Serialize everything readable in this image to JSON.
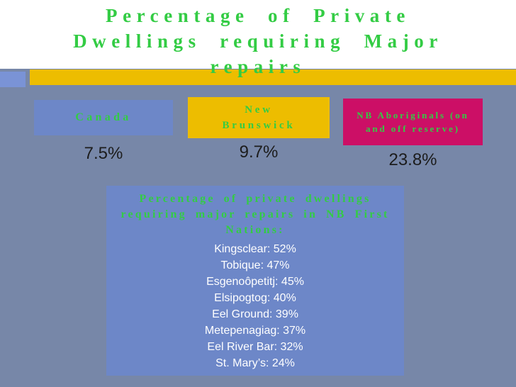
{
  "slide": {
    "title": "Percentage of Private Dwellings requiring Major repairs",
    "colors": {
      "background": "#7787a8",
      "title_band": "#ffffff",
      "heading_green": "#33cc44",
      "accent_bar_gold": "#edbd00",
      "accent_square_blue": "#7a93d6",
      "canada_box_blue": "#6d87c8",
      "new_brunswick_box_gold": "#edbd00",
      "aboriginals_box_magenta": "#cc0f66",
      "value_text": "#1c1c1c",
      "list_text": "#ffffff"
    },
    "stats": [
      {
        "label": "Canada",
        "value": "7.5%"
      },
      {
        "label": "New Brunswick",
        "value": "9.7%"
      },
      {
        "label": "NB Aboriginals (on and off reserve)",
        "value": "23.8%"
      }
    ],
    "detail_box": {
      "title": "Percentage of private dwellings requiring major repairs in NB First Nations:",
      "items": [
        "Kingsclear: 52%",
        "Tobique: 47%",
        "Esgenoôpetitj: 45%",
        "Elsipogtog: 40%",
        "Eel Ground: 39%",
        "Metepenagiag: 37%",
        "Eel River Bar: 32%",
        "St. Mary’s: 24%"
      ]
    }
  }
}
